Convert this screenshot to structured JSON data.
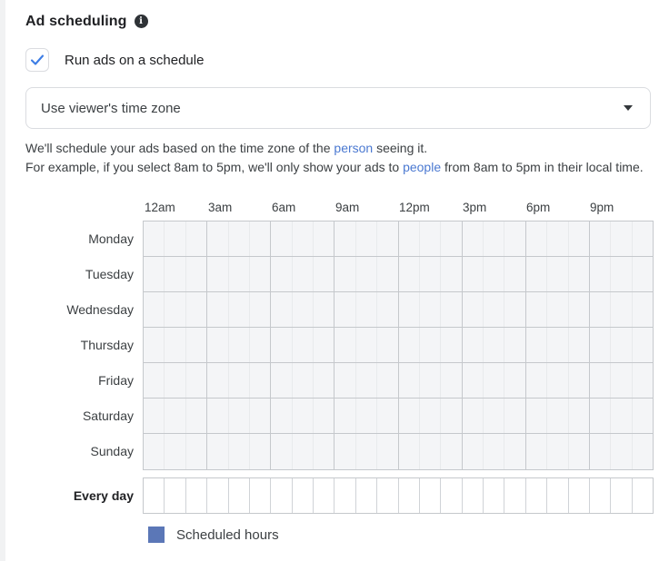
{
  "header": {
    "title": "Ad scheduling"
  },
  "schedule_checkbox": {
    "label": "Run ads on a schedule",
    "checked": true
  },
  "timezone_dropdown": {
    "value": "Use viewer's time zone"
  },
  "description": {
    "lines": [
      {
        "segments": [
          {
            "t": "We'll schedule your ads based on the time zone of the "
          },
          {
            "t": "person",
            "link": true
          },
          {
            "t": " seeing it."
          }
        ]
      },
      {
        "segments": [
          {
            "t": "For example, if you select 8am to 5pm, we'll only show your ads to "
          },
          {
            "t": "people",
            "link": true
          },
          {
            "t": " from 8am to 5pm in their local time."
          }
        ]
      }
    ]
  },
  "schedule_grid": {
    "hour_labels": [
      "12am",
      "3am",
      "6am",
      "9am",
      "12pm",
      "3pm",
      "6pm",
      "9pm"
    ],
    "days": [
      "Monday",
      "Tuesday",
      "Wednesday",
      "Thursday",
      "Friday",
      "Saturday",
      "Sunday"
    ],
    "summary_label": "Every day",
    "columns": 24,
    "group_size": 3,
    "scheduled_cells": []
  },
  "legend": {
    "label": "Scheduled hours",
    "swatch_color": "#5b77b7"
  },
  "colors": {
    "link": "#4b79d1",
    "checkmark": "#3d7de5",
    "grid_cell_bg": "#f4f5f7",
    "grid_border_strong": "#c5c8cc",
    "grid_border_light": "#e8eaec"
  }
}
